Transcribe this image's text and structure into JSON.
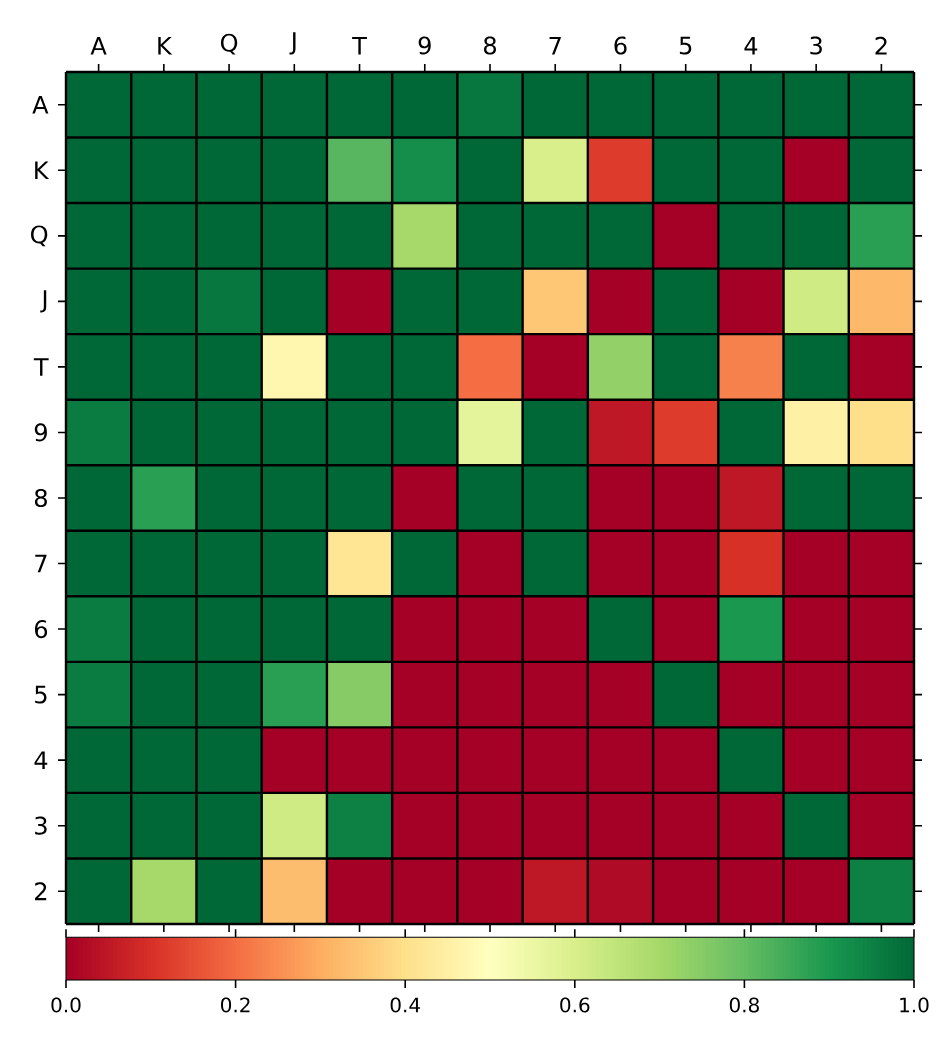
{
  "chart_data": {
    "type": "heatmap",
    "categories": [
      "A",
      "K",
      "Q",
      "J",
      "T",
      "9",
      "8",
      "7",
      "6",
      "5",
      "4",
      "3",
      "2"
    ],
    "y_categories": [
      "A",
      "K",
      "Q",
      "J",
      "T",
      "9",
      "8",
      "7",
      "6",
      "5",
      "4",
      "3",
      "2"
    ],
    "cells": [
      [
        1,
        1,
        1,
        1,
        1,
        1,
        0.97,
        1,
        1,
        1,
        1,
        1,
        1
      ],
      [
        1,
        1,
        1,
        1,
        0.82,
        0.92,
        1,
        0.6,
        0.12,
        1,
        1,
        0,
        1
      ],
      [
        1,
        1,
        1,
        1,
        1,
        0.7,
        1,
        1,
        1,
        0,
        1,
        1,
        0.88
      ],
      [
        1,
        1,
        0.97,
        1,
        0,
        1,
        1,
        0.35,
        0,
        1,
        0,
        0.62,
        0.32
      ],
      [
        1,
        1,
        1,
        0.47,
        1,
        1,
        0.2,
        0,
        0.73,
        1,
        0.23,
        1,
        0
      ],
      [
        0.96,
        1,
        1,
        1,
        1,
        1,
        0.57,
        1,
        0.05,
        0.12,
        1,
        0.45,
        0.4
      ],
      [
        1,
        0.88,
        1,
        1,
        1,
        0,
        1,
        1,
        0,
        0,
        0.05,
        1,
        1
      ],
      [
        1,
        1,
        1,
        1,
        0.42,
        1,
        0,
        1,
        0,
        0,
        0.1,
        0,
        0
      ],
      [
        0.96,
        1,
        1,
        1,
        1,
        0,
        0,
        0,
        1,
        0,
        0.9,
        0,
        0
      ],
      [
        0.96,
        1,
        1,
        0.88,
        0.75,
        0,
        0,
        0,
        0,
        1,
        0,
        0,
        0
      ],
      [
        1,
        1,
        1,
        0,
        0,
        0,
        0,
        0,
        0,
        0,
        1,
        0,
        0
      ],
      [
        1,
        1,
        1,
        0.62,
        0.95,
        0,
        0,
        0,
        0,
        0,
        0,
        1,
        0
      ],
      [
        1,
        0.7,
        1,
        0.33,
        0,
        0,
        0,
        0.05,
        0.02,
        0,
        0,
        0,
        0.95
      ]
    ],
    "clim": [
      0,
      1
    ],
    "cticks": [
      {
        "value": 0,
        "label": "0.0"
      },
      {
        "value": 0.2,
        "label": "0.2"
      },
      {
        "value": 0.4,
        "label": "0.4"
      },
      {
        "value": 0.6,
        "label": "0.6"
      },
      {
        "value": 0.8,
        "label": "0.8"
      },
      {
        "value": 1,
        "label": "1.0"
      }
    ]
  }
}
